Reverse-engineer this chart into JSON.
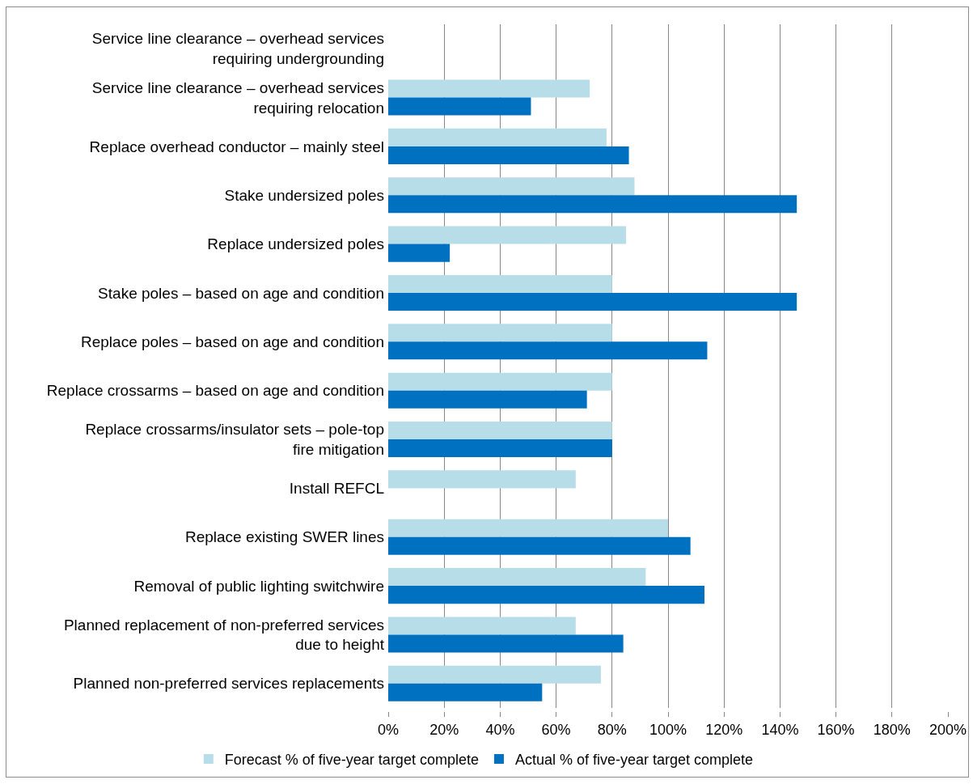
{
  "chart_data": {
    "type": "bar",
    "orientation": "horizontal",
    "categories": [
      "Service line clearance – overhead services requiring undergrounding",
      "Service line clearance – overhead services requiring relocation",
      "Replace overhead conductor – mainly steel",
      "Stake undersized poles",
      "Replace undersized poles",
      "Stake poles – based on age and condition",
      "Replace poles – based on age and condition",
      "Replace crossarms – based on age and condition",
      "Replace crossarms/insulator sets – pole-top fire mitigation",
      "Install REFCL",
      "Replace existing SWER lines",
      "Removal of public lighting switchwire",
      "Planned replacement of non-preferred services due to height",
      "Planned non-preferred services replacements"
    ],
    "series": [
      {
        "name": "Forecast % of five-year target complete",
        "color": "#b7dde8",
        "values": [
          null,
          72,
          78,
          88,
          85,
          80,
          80,
          80,
          80,
          67,
          100,
          92,
          67,
          76
        ]
      },
      {
        "name": "Actual % of five-year target complete",
        "color": "#0070c0",
        "values": [
          null,
          51,
          86,
          146,
          22,
          146,
          114,
          71,
          80,
          null,
          108,
          113,
          84,
          55
        ]
      }
    ],
    "xlim": [
      0,
      200
    ],
    "xticks": [
      {
        "value": 0,
        "label": "0%"
      },
      {
        "value": 20,
        "label": "20%"
      },
      {
        "value": 40,
        "label": "40%"
      },
      {
        "value": 60,
        "label": "60%"
      },
      {
        "value": 80,
        "label": "80%"
      },
      {
        "value": 100,
        "label": "100%"
      },
      {
        "value": 120,
        "label": "120%"
      },
      {
        "value": 140,
        "label": "140%"
      },
      {
        "value": 160,
        "label": "160%"
      },
      {
        "value": 180,
        "label": "180%"
      },
      {
        "value": 200,
        "label": "200%"
      }
    ],
    "grid": "x",
    "legend": "bottom"
  }
}
